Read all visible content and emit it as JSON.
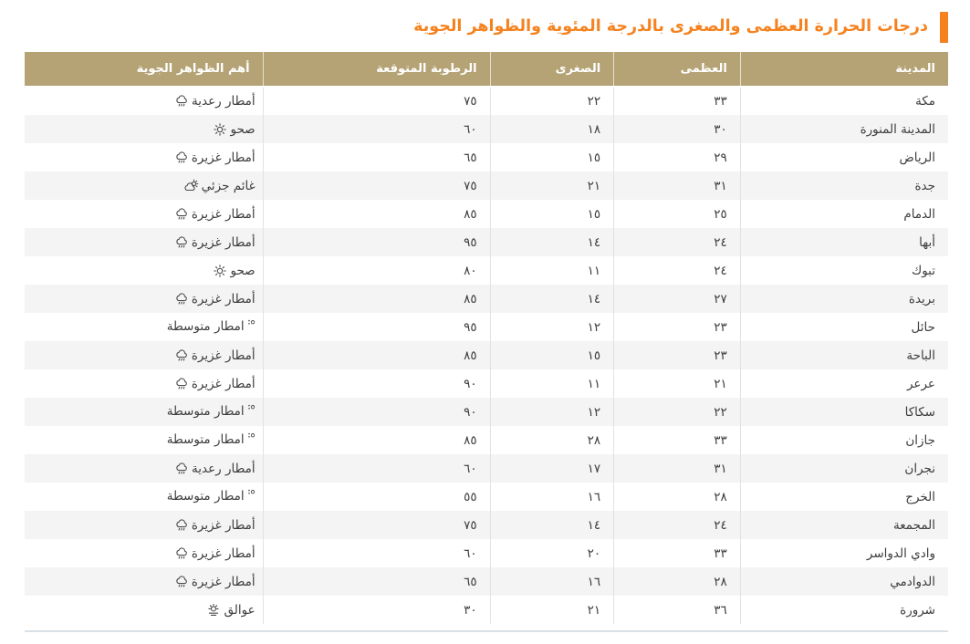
{
  "page": {
    "title": "درجات الحرارة العظمى والصغرى بالدرجة المئوية والظواهر الجوية",
    "accent_color": "#F5821F"
  },
  "table": {
    "header_bg": "#B5A376",
    "columns": {
      "city": "المدينة",
      "max": "العظمى",
      "min": "الصغرى",
      "humidity": "الرطوبة المتوقعة",
      "phenomena": "أهم الظواهر الجوية"
    },
    "rows": [
      {
        "city": "مكة",
        "max": "٣٣",
        "min": "٢٢",
        "humidity": "٧٥",
        "phenomena": "أمطار رعدية",
        "icon": "rain"
      },
      {
        "city": "المدينة المنورة",
        "max": "٣٠",
        "min": "١٨",
        "humidity": "٦٠",
        "phenomena": "صحو",
        "icon": "clear"
      },
      {
        "city": "الرياض",
        "max": "٢٩",
        "min": "١٥",
        "humidity": "٦٥",
        "phenomena": "أمطار غزيرة",
        "icon": "rain"
      },
      {
        "city": "جدة",
        "max": "٣١",
        "min": "٢١",
        "humidity": "٧٥",
        "phenomena": "غائم جزئي",
        "icon": "partly-cloudy"
      },
      {
        "city": "الدمام",
        "max": "٢٥",
        "min": "١٥",
        "humidity": "٨٥",
        "phenomena": "أمطار غزيرة",
        "icon": "rain"
      },
      {
        "city": "أبها",
        "max": "٢٤",
        "min": "١٤",
        "humidity": "٩٥",
        "phenomena": "أمطار غزيرة",
        "icon": "rain"
      },
      {
        "city": "تبوك",
        "max": "٢٤",
        "min": "١١",
        "humidity": "٨٠",
        "phenomena": "صحو",
        "icon": "clear"
      },
      {
        "city": "بريدة",
        "max": "٢٧",
        "min": "١٤",
        "humidity": "٨٥",
        "phenomena": "أمطار غزيرة",
        "icon": "rain"
      },
      {
        "city": "حائل",
        "max": "٢٣",
        "min": "١٢",
        "humidity": "٩٥",
        "phenomena": "امطار متوسطة",
        "icon": "moderate-rain"
      },
      {
        "city": "الباحة",
        "max": "٢٣",
        "min": "١٥",
        "humidity": "٨٥",
        "phenomena": "أمطار غزيرة",
        "icon": "rain"
      },
      {
        "city": "عرعر",
        "max": "٢١",
        "min": "١١",
        "humidity": "٩٠",
        "phenomena": "أمطار غزيرة",
        "icon": "rain"
      },
      {
        "city": "سكاكا",
        "max": "٢٢",
        "min": "١٢",
        "humidity": "٩٠",
        "phenomena": "امطار متوسطة",
        "icon": "moderate-rain"
      },
      {
        "city": "جازان",
        "max": "٣٣",
        "min": "٢٨",
        "humidity": "٨٥",
        "phenomena": "امطار متوسطة",
        "icon": "moderate-rain"
      },
      {
        "city": "نجران",
        "max": "٣١",
        "min": "١٧",
        "humidity": "٦٠",
        "phenomena": "أمطار رعدية",
        "icon": "rain"
      },
      {
        "city": "الخرج",
        "max": "٢٨",
        "min": "١٦",
        "humidity": "٥٥",
        "phenomena": "امطار متوسطة",
        "icon": "moderate-rain"
      },
      {
        "city": "المجمعة",
        "max": "٢٤",
        "min": "١٤",
        "humidity": "٧٥",
        "phenomena": "أمطار غزيرة",
        "icon": "rain"
      },
      {
        "city": "وادي الدواسر",
        "max": "٣٣",
        "min": "٢٠",
        "humidity": "٦٠",
        "phenomena": "أمطار غزيرة",
        "icon": "rain"
      },
      {
        "city": "الدوادمي",
        "max": "٢٨",
        "min": "١٦",
        "humidity": "٦٥",
        "phenomena": "أمطار غزيرة",
        "icon": "rain"
      },
      {
        "city": "شرورة",
        "max": "٣٦",
        "min": "٢١",
        "humidity": "٣٠",
        "phenomena": "عوالق",
        "icon": "haze"
      }
    ]
  }
}
